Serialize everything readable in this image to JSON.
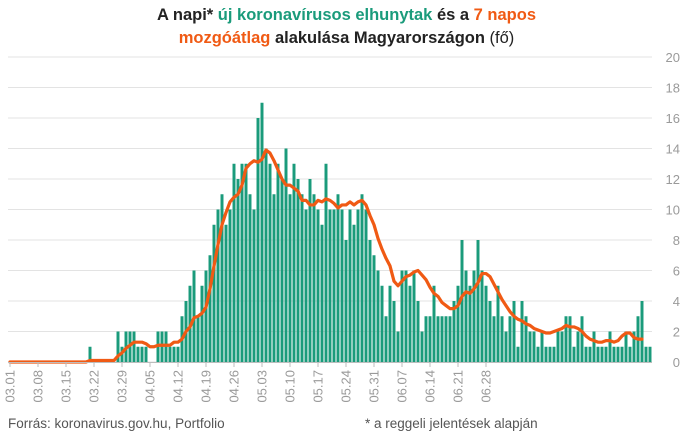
{
  "title": {
    "line1": {
      "p1": "A napi* ",
      "p2": "új koronavírusos elhunytak",
      "p3": " és a ",
      "p4": "7 napos"
    },
    "line2": {
      "p1": "mozgóátlag",
      "p2": " alakulása Magyarországon",
      "p3": " (fő)"
    }
  },
  "footer": {
    "source": "Forrás: koronavirus.gov.hu, Portfolio",
    "note": "* a reggeli jelentések alapján"
  },
  "colors": {
    "bar": "#1a9b7b",
    "line": "#f05a14",
    "grid": "#e3e3e3",
    "tick": "#9a9a9a"
  },
  "chart_data": {
    "type": "bar",
    "ylim": [
      0,
      20
    ],
    "yticks": [
      0,
      2,
      4,
      6,
      8,
      10,
      12,
      14,
      16,
      18,
      20
    ],
    "y_axis_side": "right",
    "grid": true,
    "xtick_labels": [
      "03.01",
      "03.08",
      "03.15",
      "03.22",
      "03.29",
      "04.05",
      "04.12",
      "04.19",
      "04.26",
      "05.03",
      "05.10",
      "05.17",
      "05.24",
      "05.31",
      "06.07",
      "06.14",
      "06.21",
      "06.28"
    ],
    "xtick_every": 7,
    "series": [
      {
        "type": "bar",
        "values": [
          0,
          0,
          0,
          0,
          0,
          0,
          0,
          0,
          0,
          0,
          0,
          0,
          0,
          0,
          0,
          0,
          0,
          0,
          0,
          0,
          1,
          0,
          0,
          0,
          0,
          0,
          0,
          2,
          1,
          2,
          2,
          2,
          1,
          1,
          1,
          0,
          0,
          2,
          2,
          2,
          1,
          1,
          1,
          3,
          4,
          5,
          6,
          3,
          5,
          6,
          7,
          9,
          10,
          11,
          9,
          10,
          13,
          12,
          13,
          13,
          11,
          10,
          16,
          17,
          14,
          13,
          11,
          13,
          12,
          14,
          11,
          13,
          12,
          11,
          10,
          12,
          11,
          10,
          9,
          13,
          10,
          10,
          11,
          10,
          8,
          10,
          9,
          10,
          11,
          10,
          8,
          7,
          6,
          5,
          3,
          5,
          4,
          2,
          6,
          6,
          5,
          6,
          4,
          2,
          3,
          3,
          5,
          3,
          3,
          3,
          3,
          4,
          5,
          8,
          6,
          5,
          6,
          8,
          6,
          5,
          4,
          3,
          5,
          3,
          2,
          3,
          4,
          1,
          4,
          3,
          2,
          2,
          1,
          2,
          1,
          1,
          1,
          2,
          2,
          3,
          3,
          1,
          2,
          3,
          1,
          1,
          2,
          1,
          1,
          1,
          2,
          1,
          1,
          1,
          2,
          1,
          2,
          3,
          4,
          1,
          1
        ]
      },
      {
        "type": "line",
        "values": [
          0,
          0,
          0,
          0,
          0,
          0,
          0,
          0,
          0,
          0,
          0,
          0,
          0,
          0,
          0,
          0,
          0,
          0,
          0,
          0,
          0.1,
          0.1,
          0.1,
          0.1,
          0.1,
          0.1,
          0.1,
          0.4,
          0.6,
          0.9,
          1.1,
          1.3,
          1.3,
          1.3,
          1.2,
          1,
          1,
          1.1,
          1.1,
          1.1,
          1.1,
          1.3,
          1.3,
          1.5,
          2,
          2.3,
          2.9,
          3,
          3.2,
          3.6,
          4.8,
          6.3,
          7.7,
          9,
          9.8,
          10.5,
          10.8,
          11,
          11.6,
          12.7,
          13,
          13.2,
          13.1,
          13.3,
          13.9,
          13.7,
          13.2,
          12.6,
          12,
          11.6,
          11.6,
          11.4,
          11.2,
          10.6,
          10.6,
          10.3,
          10.3,
          10.6,
          10.5,
          10.7,
          10.6,
          10.4,
          10.1,
          10.3,
          10.3,
          10.5,
          10.3,
          10.5,
          10.6,
          10.3,
          9.6,
          9,
          8.1,
          7.4,
          6.8,
          6.3,
          5.3,
          5,
          5.3,
          5.6,
          5.7,
          5.9,
          6,
          5.7,
          5.4,
          4.9,
          4.5,
          4.3,
          3.9,
          3.7,
          3.5,
          3.5,
          3.7,
          4.3,
          4.6,
          4.5,
          4.8,
          5.2,
          5.8,
          5.8,
          5.6,
          5.1,
          4.6,
          4.1,
          3.7,
          3.3,
          3,
          2.8,
          2.7,
          2.5,
          2.4,
          2.2,
          2.1,
          2,
          1.9,
          1.9,
          2,
          2.1,
          2.2,
          2.4,
          2.3,
          2.3,
          2.2,
          2,
          1.7,
          1.5,
          1.4,
          1.3,
          1.3,
          1.4,
          1.4,
          1.3,
          1.4,
          1.7,
          1.9,
          1.9,
          1.6,
          1.5,
          1.5
        ]
      }
    ]
  }
}
